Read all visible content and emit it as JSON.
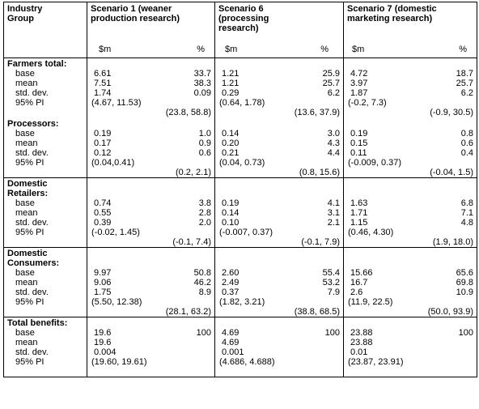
{
  "headers": {
    "group": "Industry Group",
    "scenarios": [
      "Scenario 1 (weaner production research)",
      "Scenario 6 (processing research)",
      "Scenario 7 (domestic marketing research)"
    ],
    "unit_m": "$m",
    "unit_pct": "%"
  },
  "groups": [
    {
      "label": "Farmers total:",
      "rows": [
        "base",
        "mean",
        "std. dev.",
        "95% PI"
      ],
      "cols": [
        {
          "base": [
            "6.61",
            "33.7"
          ],
          "mean": [
            "7.51",
            "38.3"
          ],
          "sd": [
            "1.74",
            "0.09"
          ],
          "pi_m": "(4.67, 11.53)",
          "pi_pct": "(23.8, 58.8)"
        },
        {
          "base": [
            "1.21",
            "25.9"
          ],
          "mean": [
            "1.21",
            "25.7"
          ],
          "sd": [
            "0.29",
            "6.2"
          ],
          "pi_m": "(0.64, 1.78)",
          "pi_pct": "(13.6, 37.9)"
        },
        {
          "base": [
            "4.72",
            "18.7"
          ],
          "mean": [
            "3.97",
            "25.7"
          ],
          "sd": [
            "1.87",
            "6.2"
          ],
          "pi_m": "(-0.2, 7.3)",
          "pi_pct": "(-0.9, 30.5)"
        }
      ]
    },
    {
      "label": "Processors:",
      "rows": [
        "base",
        "mean",
        "std. dev.",
        "95% PI"
      ],
      "cols": [
        {
          "base": [
            "0.19",
            "1.0"
          ],
          "mean": [
            "0.17",
            "0.9"
          ],
          "sd": [
            "0.12",
            "0.6"
          ],
          "pi_m": "(0.04,0.41)",
          "pi_pct": "(0.2, 2.1)"
        },
        {
          "base": [
            "0.14",
            "3.0"
          ],
          "mean": [
            "0.20",
            "4.3"
          ],
          "sd": [
            "0.21",
            "4.4"
          ],
          "pi_m": "(0.04, 0.73)",
          "pi_pct": "(0.8, 15.6)"
        },
        {
          "base": [
            "0.19",
            "0.8"
          ],
          "mean": [
            "0.15",
            "0.6"
          ],
          "sd": [
            "0.11",
            "0.4"
          ],
          "pi_m": "(-0.009, 0.37)",
          "pi_pct": "(-0.04, 1.5)"
        }
      ]
    },
    {
      "label1": "Domestic",
      "label2": "Retailers:",
      "rows": [
        "base",
        "mean",
        "std. dev.",
        "95% PI"
      ],
      "cols": [
        {
          "base": [
            "0.74",
            "3.8"
          ],
          "mean": [
            "0.55",
            "2.8"
          ],
          "sd": [
            "0.39",
            "2.0"
          ],
          "pi_m": "(-0.02, 1.45)",
          "pi_pct": "(-0.1, 7.4)"
        },
        {
          "base": [
            "0.19",
            "4.1"
          ],
          "mean": [
            "0.14",
            "3.1"
          ],
          "sd": [
            "0.10",
            "2.1"
          ],
          "pi_m": "(-0.007, 0.37)",
          "pi_pct": "(-0.1, 7.9)"
        },
        {
          "base": [
            "1.63",
            "6.8"
          ],
          "mean": [
            "1.71",
            "7.1"
          ],
          "sd": [
            "1.15",
            "4.8"
          ],
          "pi_m": "(0.46, 4.30)",
          "pi_pct": "(1.9, 18.0)"
        }
      ]
    },
    {
      "label1": "Domestic",
      "label2": "Consumers:",
      "rows": [
        "base",
        "mean",
        "std. dev.",
        "95% PI"
      ],
      "cols": [
        {
          "base": [
            "9.97",
            "50.8"
          ],
          "mean": [
            "9.06",
            "46.2"
          ],
          "sd": [
            "1.75",
            "8.9"
          ],
          "pi_m": "(5.50, 12.38)",
          "pi_pct": "(28.1, 63.2)"
        },
        {
          "base": [
            "2.60",
            "55.4"
          ],
          "mean": [
            "2.49",
            "53.2"
          ],
          "sd": [
            "0.37",
            "7.9"
          ],
          "pi_m": "(1.82, 3.21)",
          "pi_pct": "(38.8, 68.5)"
        },
        {
          "base": [
            "15.66",
            "65.6"
          ],
          "mean": [
            "16.7",
            "69.8"
          ],
          "sd": [
            "2.6",
            "10.9"
          ],
          "pi_m": "(11.9, 22.5)",
          "pi_pct": "(50.0, 93.9)"
        }
      ]
    },
    {
      "label": "Total benefits:",
      "rows": [
        "base",
        "mean",
        "std. dev.",
        "95% PI"
      ],
      "cols": [
        {
          "base": [
            "19.6",
            "100"
          ],
          "mean": [
            "19.6",
            ""
          ],
          "sd": [
            "0.004",
            ""
          ],
          "pi_m": "(19.60, 19.61)",
          "pi_pct": ""
        },
        {
          "base": [
            "4.69",
            "100"
          ],
          "mean": [
            "4.69",
            ""
          ],
          "sd": [
            "0.001",
            ""
          ],
          "pi_m": "(4.686, 4.688)",
          "pi_pct": ""
        },
        {
          "base": [
            "23.88",
            "100"
          ],
          "mean": [
            "23.88",
            ""
          ],
          "sd": [
            "0.01",
            ""
          ],
          "pi_m": "(23.87, 23.91)",
          "pi_pct": ""
        }
      ]
    }
  ]
}
